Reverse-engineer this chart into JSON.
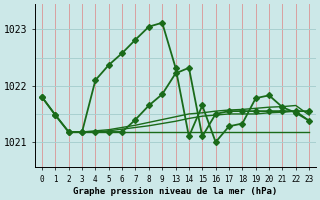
{
  "background_color": "#cce8e8",
  "grid_color_v": "#d9a0a0",
  "grid_color_h": "#a8d0d0",
  "line_color": "#1a6b1a",
  "title": "Graphe pression niveau de la mer (hPa)",
  "ytick_vals": [
    1021,
    1022,
    1023
  ],
  "lines": [
    {
      "x": [
        0,
        1,
        2,
        3,
        4,
        5,
        6,
        7,
        8,
        9,
        13,
        14,
        15,
        16,
        17,
        18,
        19,
        20,
        21,
        22,
        23
      ],
      "y": [
        1021.8,
        1021.48,
        1021.18,
        1021.18,
        1022.1,
        1022.37,
        1022.58,
        1022.82,
        1023.05,
        1023.12,
        1022.32,
        1021.1,
        1021.65,
        1021.0,
        1021.28,
        1021.33,
        1021.78,
        1021.83,
        1021.62,
        1021.52,
        1021.38
      ],
      "marker": true,
      "lw": 1.3
    },
    {
      "x": [
        0,
        1,
        2,
        3,
        4,
        5,
        6,
        7,
        8,
        9,
        13,
        14,
        15,
        16,
        17,
        18,
        19,
        20,
        21,
        22,
        23
      ],
      "y": [
        1021.8,
        1021.48,
        1021.18,
        1021.18,
        1021.18,
        1021.18,
        1021.18,
        1021.4,
        1021.65,
        1021.85,
        1022.22,
        1022.32,
        1021.1,
        1021.5,
        1021.55,
        1021.55,
        1021.55,
        1021.55,
        1021.55,
        1021.55,
        1021.55
      ],
      "marker": true,
      "lw": 1.3
    },
    {
      "x": [
        2,
        3,
        4,
        5,
        6,
        7,
        8,
        9,
        13,
        14,
        15,
        16,
        17,
        18,
        19,
        20,
        21,
        22,
        23
      ],
      "y": [
        1021.18,
        1021.18,
        1021.18,
        1021.18,
        1021.18,
        1021.18,
        1021.18,
        1021.18,
        1021.18,
        1021.18,
        1021.18,
        1021.18,
        1021.18,
        1021.18,
        1021.18,
        1021.18,
        1021.18,
        1021.18,
        1021.18
      ],
      "marker": false,
      "lw": 1.0
    },
    {
      "x": [
        2,
        3,
        4,
        5,
        6,
        7,
        8,
        9,
        13,
        14,
        15,
        16,
        17,
        18,
        19,
        20,
        21,
        22,
        23
      ],
      "y": [
        1021.18,
        1021.18,
        1021.2,
        1021.22,
        1021.26,
        1021.3,
        1021.35,
        1021.4,
        1021.45,
        1021.5,
        1021.52,
        1021.55,
        1021.57,
        1021.58,
        1021.6,
        1021.62,
        1021.63,
        1021.65,
        1021.48
      ],
      "marker": false,
      "lw": 1.0
    },
    {
      "x": [
        2,
        3,
        4,
        5,
        6,
        7,
        8,
        9,
        13,
        14,
        15,
        16,
        17,
        18,
        19,
        20,
        21,
        22,
        23
      ],
      "y": [
        1021.18,
        1021.18,
        1021.18,
        1021.2,
        1021.23,
        1021.26,
        1021.29,
        1021.33,
        1021.37,
        1021.42,
        1021.46,
        1021.48,
        1021.5,
        1021.5,
        1021.5,
        1021.52,
        1021.53,
        1021.55,
        1021.38
      ],
      "marker": false,
      "lw": 1.0
    }
  ]
}
